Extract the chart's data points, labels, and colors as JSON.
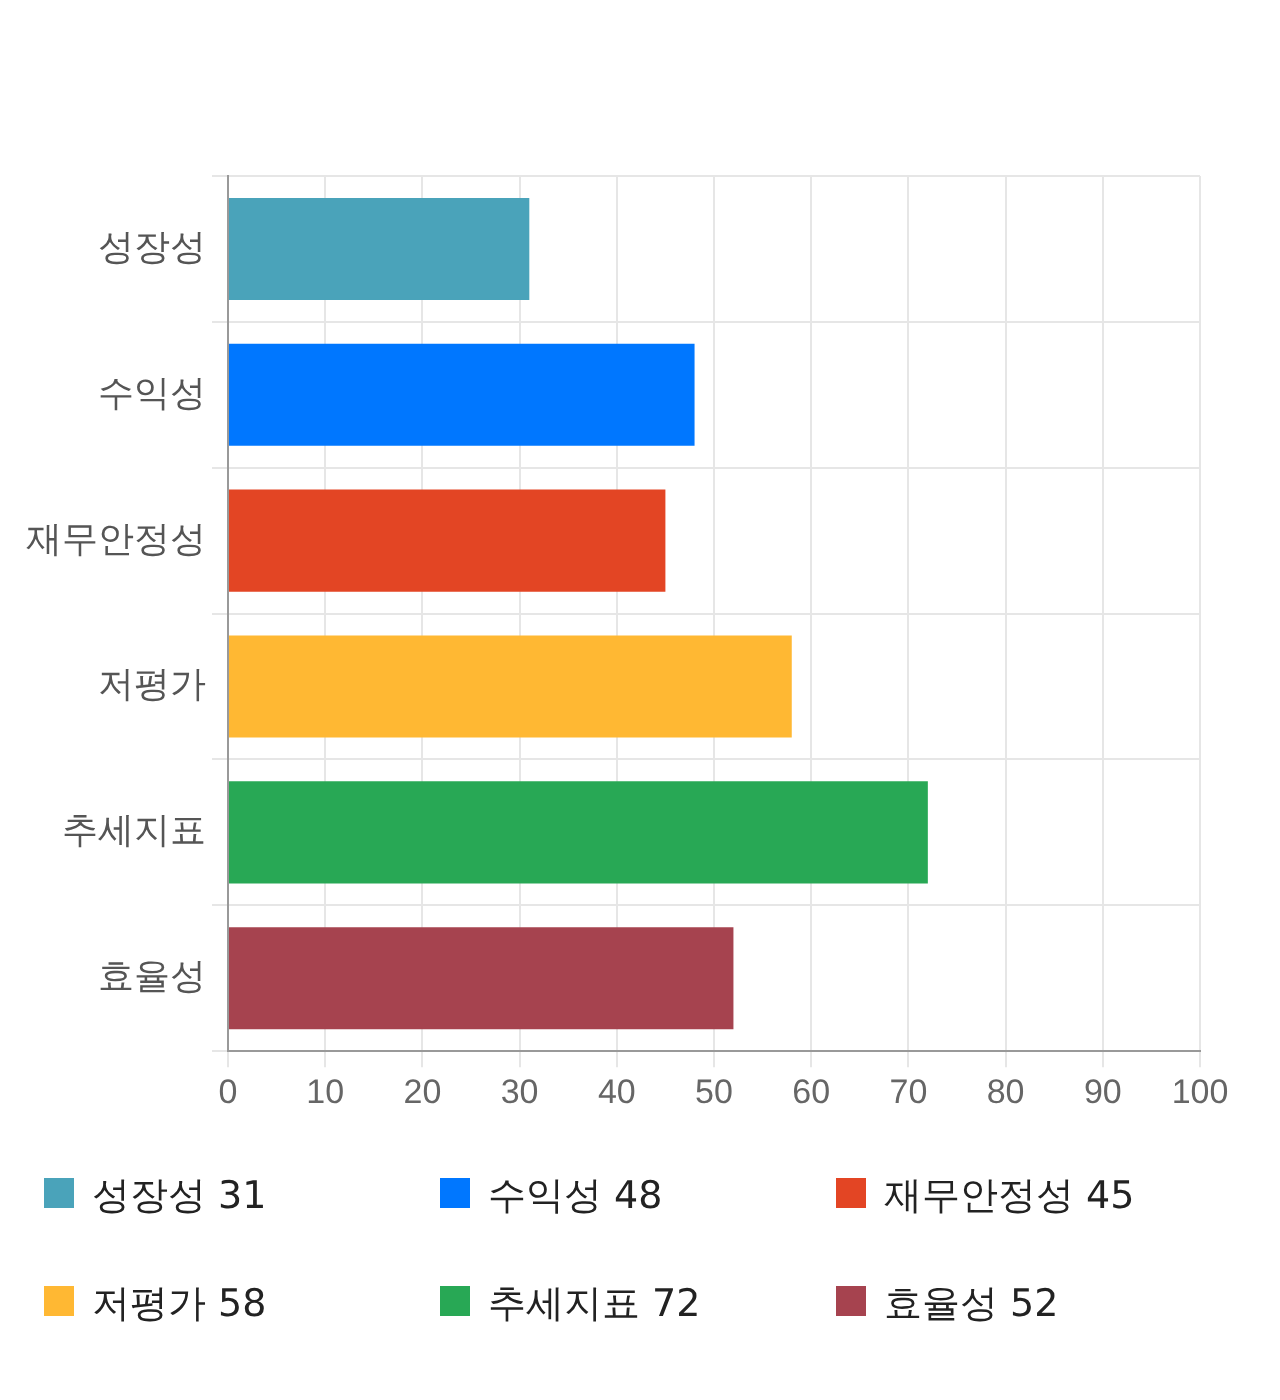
{
  "chart_data": {
    "type": "bar",
    "orientation": "horizontal",
    "categories": [
      "성장성",
      "수익성",
      "재무안정성",
      "저평가",
      "추세지표",
      "효율성"
    ],
    "values": [
      31,
      48,
      45,
      58,
      72,
      52
    ],
    "value_labels": [
      "31",
      "48",
      "45",
      "58",
      "72",
      "52"
    ],
    "colors": [
      "#4aa3ba",
      "#0077ff",
      "#e34524",
      "#ffb833",
      "#28a855",
      "#a6434f"
    ],
    "xlim": [
      0,
      100
    ],
    "xticks": [
      0,
      10,
      20,
      30,
      40,
      50,
      60,
      70,
      80,
      90,
      100
    ],
    "grid": true
  }
}
